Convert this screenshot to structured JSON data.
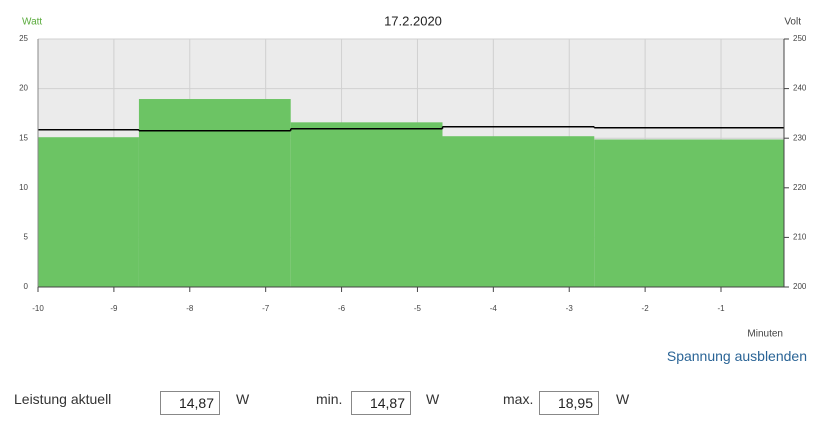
{
  "chart_data": {
    "type": "histogram",
    "title": "17.2.2020",
    "y_label": "Watt",
    "y2_label": "Volt",
    "x_label": "Minuten",
    "bins": [
      -10,
      -8.67,
      -6.67,
      -4.67,
      -2.67,
      -0.17
    ],
    "series": [
      {
        "color": "#6cc464",
        "values": [
          15.1,
          18.95,
          16.6,
          15.2,
          14.87
        ]
      },
      {
        "color": "#000000",
        "axis": "y2",
        "values": [
          231.7,
          231.5,
          231.9,
          232.3,
          232.1
        ]
      }
    ],
    "xlim": [
      -10,
      -0.17
    ],
    "xticks": [
      -10,
      -9,
      -8,
      -7,
      -6,
      -5,
      -4,
      -3,
      -2,
      -1
    ],
    "ylim": [
      0,
      25
    ],
    "yticks": [
      0,
      5,
      10,
      15,
      20,
      25
    ],
    "y2lim": [
      200,
      250
    ],
    "y2ticks": [
      200,
      210,
      220,
      230,
      240,
      250
    ],
    "grid": true
  },
  "controls": {
    "toggle_link": "Spannung ausblenden",
    "readouts": [
      {
        "label": "Leistung aktuell",
        "value": "14,87",
        "unit": "W"
      },
      {
        "label": "min.",
        "value": "14,87",
        "unit": "W"
      },
      {
        "label": "max.",
        "value": "18,95",
        "unit": "W"
      }
    ]
  }
}
